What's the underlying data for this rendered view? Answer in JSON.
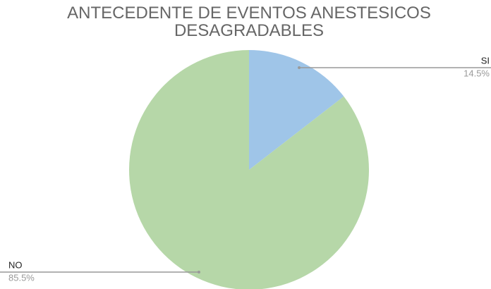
{
  "chart_data": {
    "type": "pie",
    "title": "ANTECEDENTE DE EVENTOS ANESTESICOS DESAGRADABLES",
    "categories": [
      "SI",
      "NO"
    ],
    "values": [
      14.5,
      85.5
    ],
    "value_labels": [
      "14.5%",
      "85.5%"
    ],
    "colors": [
      "#9fc5e8",
      "#b6d7a8"
    ]
  }
}
